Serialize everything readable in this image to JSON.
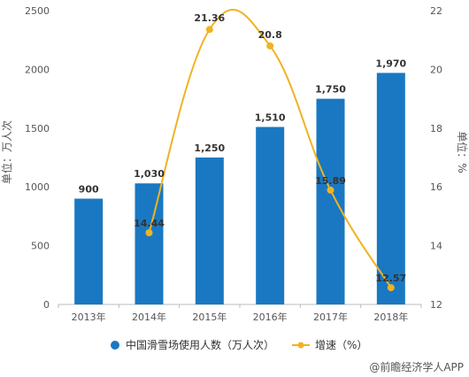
{
  "chart_data": {
    "type": "bar",
    "categories": [
      "2013年",
      "2014年",
      "2015年",
      "2016年",
      "2017年",
      "2018年"
    ],
    "series": [
      {
        "name": "中国滑雪场使用人数（万人次）",
        "type": "bar",
        "axis": "left",
        "values": [
          900,
          1030,
          1250,
          1510,
          1750,
          1970
        ],
        "labels": [
          "900",
          "1,030",
          "1,250",
          "1,510",
          "1,750",
          "1,970"
        ]
      },
      {
        "name": "增速（%）",
        "type": "line",
        "axis": "right",
        "values": [
          null,
          14.44,
          21.36,
          20.8,
          15.89,
          12.57
        ],
        "labels": [
          "",
          "14.44",
          "21.36",
          "20.8",
          "15.89",
          "12.57"
        ]
      }
    ],
    "ylabel": "单位：万人次",
    "y2label": "单位：%",
    "ylim": [
      0,
      2500
    ],
    "y2lim": [
      12,
      22
    ],
    "yticks": [
      0,
      500,
      1000,
      1500,
      2000,
      2500
    ],
    "y2ticks": [
      12,
      14,
      16,
      18,
      20,
      22
    ],
    "grid": false,
    "legend_position": "bottom",
    "colors": {
      "bar": "#1a78c2",
      "line": "#f0b323"
    }
  },
  "watermark": "@前瞻经济学人APP"
}
